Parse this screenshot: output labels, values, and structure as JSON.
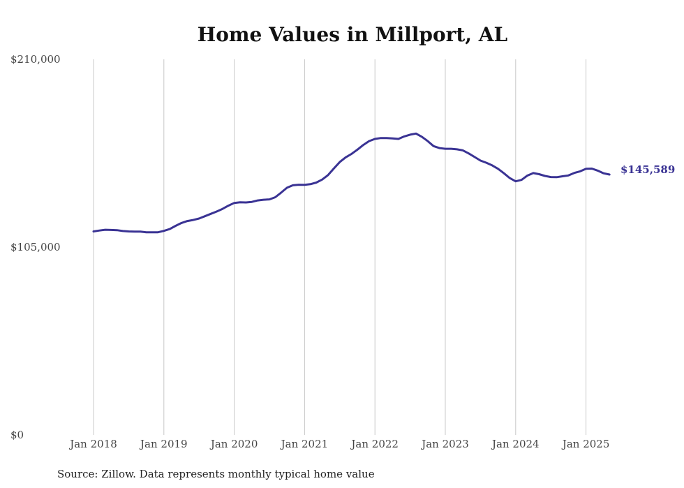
{
  "chart_data": {
    "type": "line",
    "title": "Home Values in Millport, AL",
    "xlabel": "",
    "ylabel": "",
    "source": "Source: Zillow. Data represents monthly typical home value",
    "ylim": [
      0,
      210000
    ],
    "y_ticks": [
      {
        "value": 0,
        "label": "$0"
      },
      {
        "value": 105000,
        "label": "$105,000"
      },
      {
        "value": 210000,
        "label": "$210,000"
      }
    ],
    "x_ticks": [
      {
        "value": "2018-01",
        "label": "Jan 2018"
      },
      {
        "value": "2019-01",
        "label": "Jan 2019"
      },
      {
        "value": "2020-01",
        "label": "Jan 2020"
      },
      {
        "value": "2021-01",
        "label": "Jan 2021"
      },
      {
        "value": "2022-01",
        "label": "Jan 2022"
      },
      {
        "value": "2023-01",
        "label": "Jan 2023"
      },
      {
        "value": "2024-01",
        "label": "Jan 2024"
      },
      {
        "value": "2025-01",
        "label": "Jan 2025"
      }
    ],
    "xlim": [
      "2018-01",
      "2025-05"
    ],
    "grid": "vertical",
    "line_color": "#3a3394",
    "end_label": "$145,589",
    "series": [
      {
        "x": [
          "2018-01",
          "2018-02",
          "2018-03",
          "2018-04",
          "2018-05",
          "2018-06",
          "2018-07",
          "2018-08",
          "2018-09",
          "2018-10",
          "2018-11",
          "2018-12",
          "2019-01",
          "2019-02",
          "2019-03",
          "2019-04",
          "2019-05",
          "2019-06",
          "2019-07",
          "2019-08",
          "2019-09",
          "2019-10",
          "2019-11",
          "2019-12",
          "2020-01",
          "2020-02",
          "2020-03",
          "2020-04",
          "2020-05",
          "2020-06",
          "2020-07",
          "2020-08",
          "2020-09",
          "2020-10",
          "2020-11",
          "2020-12",
          "2021-01",
          "2021-02",
          "2021-03",
          "2021-04",
          "2021-05",
          "2021-06",
          "2021-07",
          "2021-08",
          "2021-09",
          "2021-10",
          "2021-11",
          "2021-12",
          "2022-01",
          "2022-02",
          "2022-03",
          "2022-04",
          "2022-05",
          "2022-06",
          "2022-07",
          "2022-08",
          "2022-09",
          "2022-10",
          "2022-11",
          "2022-12",
          "2023-01",
          "2023-02",
          "2023-03",
          "2023-04",
          "2023-05",
          "2023-06",
          "2023-07",
          "2023-08",
          "2023-09",
          "2023-10",
          "2023-11",
          "2023-12",
          "2024-01",
          "2024-02",
          "2024-03",
          "2024-04",
          "2024-05",
          "2024-06",
          "2024-07",
          "2024-08",
          "2024-09",
          "2024-10",
          "2024-11",
          "2024-12",
          "2025-01",
          "2025-02",
          "2025-03",
          "2025-04",
          "2025-05"
        ],
        "values": [
          113800,
          114300,
          114700,
          114600,
          114500,
          114000,
          113800,
          113700,
          113700,
          113300,
          113300,
          113300,
          114100,
          115100,
          116900,
          118500,
          119600,
          120200,
          121000,
          122300,
          123600,
          124900,
          126400,
          128200,
          129700,
          130100,
          130000,
          130300,
          131100,
          131500,
          131700,
          132900,
          135500,
          138200,
          139600,
          139900,
          139800,
          140200,
          141100,
          142800,
          145300,
          149000,
          152600,
          155200,
          157100,
          159500,
          162100,
          164300,
          165500,
          166000,
          166000,
          165800,
          165500,
          166900,
          167900,
          168500,
          166700,
          164300,
          161500,
          160400,
          160000,
          160000,
          159700,
          159100,
          157400,
          155400,
          153400,
          152200,
          150700,
          148800,
          146300,
          143600,
          141800,
          142600,
          145000,
          146400,
          145800,
          144800,
          144200,
          144100,
          144600,
          145100,
          146500,
          147400,
          148800,
          148900,
          147800,
          146300,
          145600
        ]
      }
    ]
  }
}
